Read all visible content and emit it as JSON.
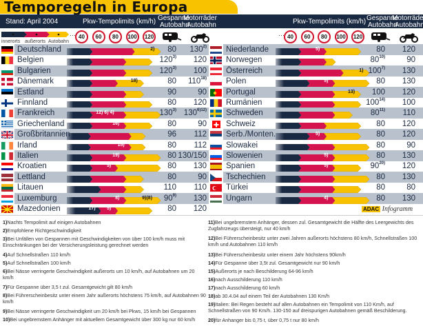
{
  "title": "Temporegeln in Europa",
  "header": {
    "stand": "Stand: April 2004",
    "pkw": "Pkw-Tempolimits (km/h)",
    "gespanne": [
      "Gespanne",
      "Autobahn"
    ],
    "motorraeder": [
      "Motorräder",
      "Autobahn"
    ]
  },
  "legend": [
    "innerorts",
    "außerorts",
    "Autobahn"
  ],
  "speed_signs": [
    "40",
    "60",
    "80",
    "100",
    "120"
  ],
  "dots": "···",
  "icons": {
    "gespanne": "caravan-icon",
    "motorrad": "motorcycle-icon"
  },
  "colors": {
    "innerorts": "#1a2942",
    "ausserorts": "#d4134f",
    "autobahn": "#f8c200",
    "shade": "#b9c2cc",
    "header": "#1a2942",
    "sign_ring": "#d2102a"
  },
  "credit": {
    "brand": "ADAC",
    "label": "Infogramm"
  },
  "chart_data": {
    "type": "bar",
    "title": "Temporegeln in Europa",
    "subtitle": "Stand: April 2004",
    "xlabel": "Pkw-Tempolimits (km/h)",
    "ticks": [
      40,
      60,
      80,
      100,
      120
    ],
    "legend": [
      "innerorts",
      "außerorts",
      "Autobahn"
    ],
    "columns": [
      "Land",
      "innerorts",
      "außerorts",
      "Autobahn",
      "Gespanne Autobahn",
      "Motorräder Autobahn"
    ],
    "left": [
      {
        "country": "Deutschland",
        "flag": "de",
        "inner": 50,
        "outer": 100,
        "autobahn": 130,
        "notes_outer": "",
        "notes_auto": "2)",
        "gespanne": "80",
        "gespanne_sup": "",
        "motorrad": "130",
        "motorrad_sup": "2)",
        "shade": true
      },
      {
        "country": "Belgien",
        "flag": "be",
        "inner": 50,
        "outer": 90,
        "autobahn": 120,
        "notes_outer": "",
        "notes_auto": "",
        "gespanne": "120",
        "gespanne_sup": "3)",
        "motorrad": "120",
        "motorrad_sup": "",
        "shade": false
      },
      {
        "country": "Bulgarien",
        "flag": "bg",
        "inner": 50,
        "outer": 90,
        "autobahn": 120,
        "notes_outer": "",
        "notes_auto": "",
        "gespanne": "120",
        "gespanne_sup": "3)",
        "motorrad": "100",
        "motorrad_sup": "",
        "shade": true
      },
      {
        "country": "Dänemark",
        "flag": "dk",
        "inner": 50,
        "outer": 80,
        "autobahn": 110,
        "notes_outer": "",
        "notes_auto": "18)",
        "gespanne": "80",
        "gespanne_sup": "",
        "motorrad": "110",
        "motorrad_sup": "18)",
        "shade": false
      },
      {
        "country": "Estland",
        "flag": "ee",
        "inner": 50,
        "outer": 90,
        "autobahn": 110,
        "notes_outer": "",
        "notes_auto": "",
        "gespanne": "90",
        "gespanne_sup": "",
        "motorrad": "90",
        "motorrad_sup": "",
        "shade": true
      },
      {
        "country": "Finnland",
        "flag": "fi",
        "inner": 50,
        "outer": 90,
        "autobahn": 120,
        "notes_outer": "",
        "notes_auto": "",
        "gespanne": "80",
        "gespanne_sup": "",
        "motorrad": "120",
        "motorrad_sup": "",
        "shade": false
      },
      {
        "country": "Frankreich",
        "flag": "fr",
        "inner": 50,
        "outer": 90,
        "autobahn": 130,
        "notes_outer": "12) 6) 4)",
        "notes_auto": "",
        "gespanne": "130",
        "gespanne_sup": "3)",
        "motorrad": "130",
        "motorrad_sup": "6)12)",
        "shade": true
      },
      {
        "country": "Griechenland",
        "flag": "gr",
        "inner": 50,
        "outer": 90,
        "autobahn": 120,
        "notes_outer": "16)",
        "notes_auto": "",
        "gespanne": "80",
        "gespanne_sup": "",
        "motorrad": "90",
        "motorrad_sup": "",
        "shade": false
      },
      {
        "country": "Großbritannien",
        "flag": "gb",
        "inner": 48,
        "outer": 96,
        "autobahn": 112,
        "notes_outer": "",
        "notes_auto": "",
        "gespanne": "96",
        "gespanne_sup": "",
        "motorrad": "112",
        "motorrad_sup": "",
        "shade": true
      },
      {
        "country": "Irland",
        "flag": "ie",
        "inner": 48,
        "outer": 96,
        "autobahn": 112,
        "notes_outer": "15)",
        "notes_auto": "",
        "gespanne": "80",
        "gespanne_sup": "",
        "motorrad": "112",
        "motorrad_sup": "",
        "shade": false
      },
      {
        "country": "Italien",
        "flag": "it",
        "inner": 50,
        "outer": 90,
        "autobahn": 130,
        "notes_outer": "19)",
        "notes_auto": "",
        "gespanne": "80",
        "gespanne_sup": "",
        "motorrad": "130/150",
        "motorrad_sup": "",
        "shade": true
      },
      {
        "country": "Kroatien",
        "flag": "hr",
        "inner": 50,
        "outer": 80,
        "autobahn": 130,
        "notes_outer": "5)",
        "notes_auto": "",
        "gespanne": "80",
        "gespanne_sup": "",
        "motorrad": "130",
        "motorrad_sup": "",
        "shade": false
      },
      {
        "country": "Lettland",
        "flag": "lv",
        "inner": 50,
        "outer": 90,
        "autobahn": 110,
        "notes_outer": "",
        "notes_auto": "",
        "gespanne": "80",
        "gespanne_sup": "",
        "motorrad": "90",
        "motorrad_sup": "",
        "shade": true
      },
      {
        "country": "Litauen",
        "flag": "lt",
        "inner": 60,
        "outer": 90,
        "autobahn": 110,
        "notes_outer": "",
        "notes_auto": "",
        "gespanne": "110",
        "gespanne_sup": "",
        "motorrad": "110",
        "motorrad_sup": "",
        "shade": false
      },
      {
        "country": "Luxemburg",
        "flag": "lu",
        "inner": 50,
        "outer": 90,
        "autobahn": 130,
        "notes_outer": "8)",
        "notes_auto": "9)(8)",
        "gespanne": "90",
        "gespanne_sup": "9)",
        "motorrad": "130",
        "motorrad_sup": "",
        "shade": true
      },
      {
        "country": "Mazedonien",
        "flag": "mk",
        "inner": 60,
        "outer": 80,
        "autobahn": 120,
        "notes_inner": "17)",
        "notes_outer": "5)",
        "notes_auto": "",
        "gespanne": "80",
        "gespanne_sup": "",
        "motorrad": "120",
        "motorrad_sup": "",
        "shade": false
      }
    ],
    "right": [
      {
        "country": "Niederlande",
        "flag": "nl",
        "inner": 50,
        "outer": 80,
        "autobahn": 120,
        "notes_outer": "5)",
        "notes_auto": "",
        "gespanne": "80",
        "gespanne_sup": "",
        "motorrad": "120",
        "motorrad_sup": "",
        "shade": true
      },
      {
        "country": "Norwegen",
        "flag": "no",
        "inner": 50,
        "outer": 80,
        "autobahn": 90,
        "notes_outer": "",
        "notes_auto": "",
        "gespanne": "80",
        "gespanne_sup": "10)",
        "motorrad": "90",
        "motorrad_sup": "",
        "shade": false
      },
      {
        "country": "Österreich",
        "flag": "at",
        "inner": 50,
        "outer": 100,
        "autobahn": 130,
        "notes_outer": "",
        "notes_auto": "1)",
        "gespanne": "100",
        "gespanne_sup": "7)",
        "motorrad": "130",
        "motorrad_sup": "",
        "shade": true
      },
      {
        "country": "Polen",
        "flag": "pl",
        "inner": 60,
        "outer": 90,
        "autobahn": 130,
        "notes_outer": "5)",
        "notes_auto": "",
        "gespanne": "80",
        "gespanne_sup": "",
        "motorrad": "130",
        "motorrad_sup": "",
        "shade": false
      },
      {
        "country": "Portugal",
        "flag": "pt",
        "inner": 50,
        "outer": 90,
        "autobahn": 120,
        "notes_outer": "",
        "notes_auto": "13)",
        "gespanne": "100",
        "gespanne_sup": "",
        "motorrad": "120",
        "motorrad_sup": "",
        "shade": true
      },
      {
        "country": "Rumänien",
        "flag": "ro",
        "inner": 50,
        "outer": 90,
        "autobahn": 120,
        "notes_outer": "",
        "notes_auto": "",
        "gespanne": "100",
        "gespanne_sup": "14)",
        "motorrad": "100",
        "motorrad_sup": "",
        "shade": false
      },
      {
        "country": "Schweden",
        "flag": "se",
        "inner": 50,
        "outer": 90,
        "autobahn": 110,
        "notes_outer": "",
        "notes_auto": "",
        "gespanne": "80",
        "gespanne_sup": "11)",
        "motorrad": "110",
        "motorrad_sup": "",
        "shade": true
      },
      {
        "country": "Schweiz",
        "flag": "ch",
        "inner": 50,
        "outer": 80,
        "autobahn": 120,
        "notes_outer": "",
        "notes_auto": "",
        "gespanne": "80",
        "gespanne_sup": "",
        "motorrad": "120",
        "motorrad_sup": "",
        "shade": false
      },
      {
        "country": "Serb./Monten.",
        "flag": "cs",
        "inner": 60,
        "outer": 80,
        "autobahn": 120,
        "notes_outer": "5)",
        "notes_auto": "",
        "gespanne": "80",
        "gespanne_sup": "",
        "motorrad": "120",
        "motorrad_sup": "",
        "shade": true
      },
      {
        "country": "Slowakei",
        "flag": "sk",
        "inner": 60,
        "outer": 90,
        "autobahn": 130,
        "notes_outer": "",
        "notes_auto": "",
        "gespanne": "80",
        "gespanne_sup": "",
        "motorrad": "90",
        "motorrad_sup": "",
        "shade": false
      },
      {
        "country": "Slowenien",
        "flag": "si",
        "inner": 50,
        "outer": 90,
        "autobahn": 130,
        "notes_outer": "5)",
        "notes_auto": "",
        "gespanne": "80",
        "gespanne_sup": "",
        "motorrad": "130",
        "motorrad_sup": "",
        "shade": true
      },
      {
        "country": "Spanien",
        "flag": "es",
        "inner": 50,
        "outer": 90,
        "autobahn": 120,
        "notes_outer": "5)",
        "notes_auto": "",
        "gespanne": "90",
        "gespanne_sup": "20)",
        "motorrad": "120",
        "motorrad_sup": "",
        "shade": false
      },
      {
        "country": "Tschechien",
        "flag": "cz",
        "inner": 50,
        "outer": 90,
        "autobahn": 130,
        "notes_outer": "",
        "notes_auto": "",
        "gespanne": "80",
        "gespanne_sup": "",
        "motorrad": "130",
        "motorrad_sup": "",
        "shade": true
      },
      {
        "country": "Türkei",
        "flag": "tr",
        "inner": 50,
        "outer": 90,
        "autobahn": 120,
        "notes_outer": "",
        "notes_auto": "",
        "gespanne": "80",
        "gespanne_sup": "",
        "motorrad": "80",
        "motorrad_sup": "",
        "shade": false
      },
      {
        "country": "Ungarn",
        "flag": "hu",
        "inner": 50,
        "outer": 90,
        "autobahn": 130,
        "notes_outer": "4)",
        "notes_auto": "",
        "gespanne": "80",
        "gespanne_sup": "",
        "motorrad": "130",
        "motorrad_sup": "",
        "shade": true
      }
    ]
  },
  "footnotes": [
    {
      "n": "1)",
      "text": "Nachts Tempolimit auf einigen Autobahnen"
    },
    {
      "n": "2)",
      "text": "Empfohlene Richtgeschwindigkeit"
    },
    {
      "n": "3)",
      "text": "Bei Unfällen von Gespannen mit Geschwindigkeiten von über 100 km/h muss mit Einschränkungen bei der Versicherungsleistung gerechnet werden"
    },
    {
      "n": "4)",
      "text": "Auf Schnellstraßen 110 km/h"
    },
    {
      "n": "5)",
      "text": "Auf Schnellstraßen 100 km/h"
    },
    {
      "n": "6)",
      "text": "Bei Nässe verringerte Geschwindigkeit außerorts um 10 km/h, auf Autobahnen um 20 km/h"
    },
    {
      "n": "7)",
      "text": "Für Gespanne über 3,5 t zul. Gesamtgewicht gilt 80 km/h"
    },
    {
      "n": "8)",
      "text": "Bei Führerscheinbesitz unter einem Jahr außerorts höchstens 75 km/h, auf Autobahnen 90 km/h"
    },
    {
      "n": "9)",
      "text": "Bei Nässe verringerte Geschwindigkeit um 20 km/h bei Pkws, 15 km/h bei Gespannen"
    },
    {
      "n": "10)",
      "text": "Bei ungebremstem Anhänger mit aktuellem Gesamtgewicht über 300 kg nur 60 km/h"
    },
    {
      "n": "11)",
      "text": "Bei ungebremstem Anhänger, dessen zul. Gesamtgewicht die Hälfte des Leergewichts des Zugfahrzeugs übersteigt, nur 40 km/h"
    },
    {
      "n": "12)",
      "text": "Bei Führerscheinbesitz unter zwei Jahren außerorts höchstens 80 km/h, Schnellstraßen 100 km/h und Autobahnen 110 km/h"
    },
    {
      "n": "13)",
      "text": "Bei Führerscheinbesitz unter einem Jahr höchstens 90km/h"
    },
    {
      "n": "14)",
      "text": "Für Gespanne über 3,5t zul. Gesamtgewicht nur 90 km/h"
    },
    {
      "n": "15)",
      "text": "Außerorts je nach Beschilderung 64-96 km/h"
    },
    {
      "n": "16)",
      "text": "nach Ausschilderung 110 km/h"
    },
    {
      "n": "17)",
      "text": "nach Ausschilderung 60 km/h"
    },
    {
      "n": "18)",
      "text": "ab 30.4.04 auf einem Teil der Autobahnen 130 Km/h"
    },
    {
      "n": "19)",
      "text": "Italien: Bei Regen besteht auf allen Autobahnen ein Tempolimit von 110 Km/h, auf Schnellstraßen von 90 Km/h. 130-150 auf dreispurigen Autobahnen gemäß Beschilderung."
    },
    {
      "n": "20)",
      "text": "für Anhanger bis 0,75 t, über 0,75 t nur 80 km/h"
    }
  ]
}
